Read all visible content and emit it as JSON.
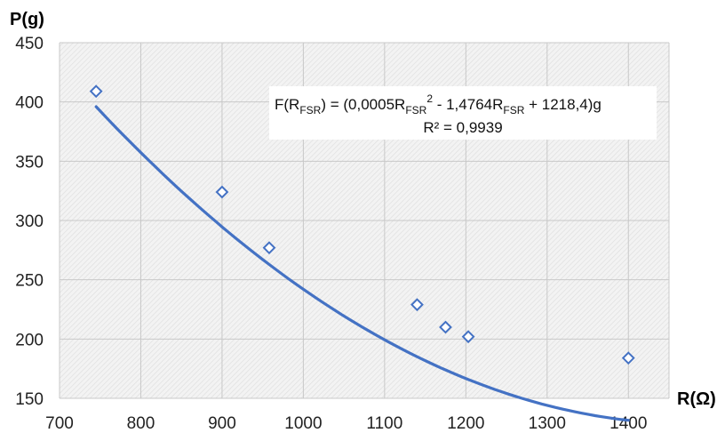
{
  "chart_data": {
    "type": "scatter",
    "xlabel": "R(Ω)",
    "ylabel": "P(g)",
    "xlim": [
      700,
      1450
    ],
    "ylim": [
      150,
      450
    ],
    "x_ticks": [
      "700",
      "800",
      "900",
      "1000",
      "1100",
      "1200",
      "1300",
      "1400"
    ],
    "y_ticks": [
      "150",
      "200",
      "250",
      "300",
      "350",
      "400",
      "450"
    ],
    "grid": true,
    "series": [
      {
        "points": [
          {
            "x": 745,
            "y": 409
          },
          {
            "x": 900,
            "y": 324
          },
          {
            "x": 958,
            "y": 277
          },
          {
            "x": 1140,
            "y": 229
          },
          {
            "x": 1175,
            "y": 210
          },
          {
            "x": 1203,
            "y": 202
          },
          {
            "x": 1400,
            "y": 184
          }
        ],
        "marker": "diamond-open"
      }
    ],
    "trendline": {
      "type": "polynomial",
      "coefficients": [
        0.0005,
        -1.4764,
        1218.4
      ],
      "x_range": [
        745,
        1400
      ]
    },
    "annotation": {
      "eq_prefix": "F(R",
      "eq_sub1": "FSR",
      "eq_mid1": ") = (0,0005R",
      "eq_sub2": "FSR",
      "eq_sup": "2",
      "eq_mid2": " - 1,4764R",
      "eq_sub3": "FSR",
      "eq_end": " + 1218,4)g",
      "r2": "R² = 0,9939"
    },
    "colors": {
      "series": "#4472c4",
      "grid": "#c8c8c8",
      "plot_bg": "#efefef"
    }
  }
}
